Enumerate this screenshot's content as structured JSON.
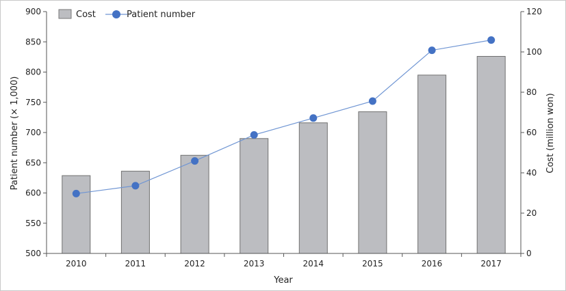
{
  "chart_data": {
    "type": "bar+line",
    "categories": [
      "2010",
      "2011",
      "2012",
      "2013",
      "2014",
      "2015",
      "2016",
      "2017"
    ],
    "xlabel": "Year",
    "ylabel_left": "Patient number (× 1,000)",
    "ylabel_right": "Cost (million won)",
    "ylim_left": [
      500,
      900
    ],
    "yticks_left": [
      500,
      550,
      600,
      650,
      700,
      750,
      800,
      850,
      900
    ],
    "ylim_right": [
      0,
      120
    ],
    "yticks_right": [
      0,
      20,
      40,
      60,
      80,
      100,
      120
    ],
    "grid": false,
    "legend_position": "top-left",
    "series": [
      {
        "name": "Cost",
        "kind": "bar",
        "axis": "right",
        "color": "#bcbdc1",
        "values": [
          38.6,
          40.8,
          48.7,
          57.0,
          64.8,
          70.3,
          88.5,
          97.8
        ]
      },
      {
        "name": "Patient number",
        "kind": "line",
        "axis": "left",
        "color": "#4472c4",
        "values": [
          599,
          612,
          653,
          696,
          724,
          752,
          836,
          853
        ]
      }
    ]
  }
}
